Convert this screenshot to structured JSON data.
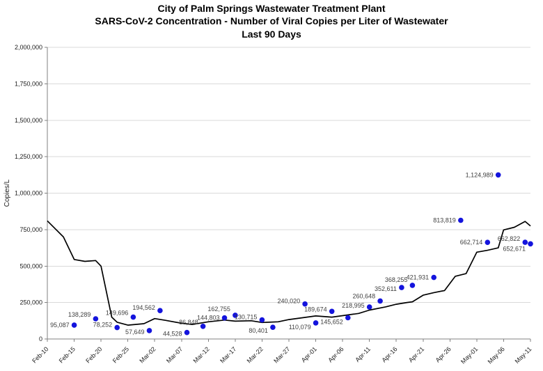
{
  "chart_data": {
    "type": "scatter",
    "title_lines": [
      "City of Palm Springs Wastewater Treatment Plant",
      "SARS-CoV-2 Concentration - Number of Viral Copies per Liter of Wastewater",
      "Last 90 Days"
    ],
    "ylabel": "Copies/L",
    "xlabel": "",
    "ylim": [
      0,
      2000000
    ],
    "x_range_days": [
      0,
      90
    ],
    "grid": "horizontal",
    "legend": "none",
    "colors": {
      "point": "#1414dd",
      "trend_line": "#000000",
      "gridline": "#d9d9d9",
      "axis": "#808080",
      "tick_label": "#1a1a1a",
      "data_label": "#404040",
      "title": "#000000",
      "background": "#ffffff"
    },
    "yticks": [
      {
        "value": 0,
        "label": "0"
      },
      {
        "value": 250000,
        "label": "250,000"
      },
      {
        "value": 500000,
        "label": "500,000"
      },
      {
        "value": 750000,
        "label": "750,000"
      },
      {
        "value": 1000000,
        "label": "1,000,000"
      },
      {
        "value": 1250000,
        "label": "1,250,000"
      },
      {
        "value": 1500000,
        "label": "1,500,000"
      },
      {
        "value": 1750000,
        "label": "1,750,000"
      },
      {
        "value": 2000000,
        "label": "2,000,000"
      }
    ],
    "xticks": [
      {
        "day": 0,
        "label": "Feb-10"
      },
      {
        "day": 5,
        "label": "Feb-15"
      },
      {
        "day": 10,
        "label": "Feb-20"
      },
      {
        "day": 15,
        "label": "Feb-25"
      },
      {
        "day": 20,
        "label": "Mar-02"
      },
      {
        "day": 25,
        "label": "Mar-07"
      },
      {
        "day": 30,
        "label": "Mar-12"
      },
      {
        "day": 35,
        "label": "Mar-17"
      },
      {
        "day": 40,
        "label": "Mar-22"
      },
      {
        "day": 45,
        "label": "Mar-27"
      },
      {
        "day": 50,
        "label": "Apr-01"
      },
      {
        "day": 55,
        "label": "Apr-06"
      },
      {
        "day": 60,
        "label": "Apr-11"
      },
      {
        "day": 65,
        "label": "Apr-16"
      },
      {
        "day": 70,
        "label": "Apr-21"
      },
      {
        "day": 75,
        "label": "Apr-26"
      },
      {
        "day": 80,
        "label": "May-01"
      },
      {
        "day": 85,
        "label": "May-06"
      },
      {
        "day": 90,
        "label": "May-11"
      }
    ],
    "points": [
      {
        "date": "Feb-15",
        "day": 5,
        "value": 95087,
        "label": "95,087",
        "label_dy": 0
      },
      {
        "date": "Feb-19",
        "day": 9,
        "value": 138289,
        "label": "138,289",
        "label_dy": -6
      },
      {
        "date": "Feb-23",
        "day": 13,
        "value": 78252,
        "label": "78,252",
        "label_dy": -4
      },
      {
        "date": "Feb-26",
        "day": 16,
        "value": 149696,
        "label": "149,696",
        "label_dy": -6
      },
      {
        "date": "Mar-01",
        "day": 19,
        "value": 57649,
        "label": "57,649",
        "label_dy": 2
      },
      {
        "date": "Mar-03",
        "day": 21,
        "value": 194562,
        "label": "194,562",
        "label_dy": -4
      },
      {
        "date": "Mar-08",
        "day": 26,
        "value": 44528,
        "label": "44,528",
        "label_dy": 2
      },
      {
        "date": "Mar-11",
        "day": 29,
        "value": 86848,
        "label": "86,848",
        "label_dy": -6
      },
      {
        "date": "Mar-15",
        "day": 33,
        "value": 144803,
        "label": "144,803",
        "label_dy": 0
      },
      {
        "date": "Mar-17",
        "day": 35,
        "value": 162755,
        "label": "162,755",
        "label_dy": -9
      },
      {
        "date": "Mar-22",
        "day": 40,
        "value": 130715,
        "label": "130,715",
        "label_dy": -4
      },
      {
        "date": "Mar-24",
        "day": 42,
        "value": 80401,
        "label": "80,401",
        "label_dy": 5
      },
      {
        "date": "Mar-30",
        "day": 48,
        "value": 240020,
        "label": "240,020",
        "label_dy": -4
      },
      {
        "date": "Apr-01",
        "day": 50,
        "value": 110079,
        "label": "110,079",
        "label_dy": 6
      },
      {
        "date": "Apr-04",
        "day": 53,
        "value": 189674,
        "label": "189,674",
        "label_dy": -3
      },
      {
        "date": "Apr-07",
        "day": 56,
        "value": 145652,
        "label": "145,652",
        "label_dy": 6
      },
      {
        "date": "Apr-11",
        "day": 60,
        "value": 218995,
        "label": "218,995",
        "label_dy": -2
      },
      {
        "date": "Apr-13",
        "day": 62,
        "value": 260648,
        "label": "260,648",
        "label_dy": -7
      },
      {
        "date": "Apr-17",
        "day": 66,
        "value": 352611,
        "label": "352,611",
        "label_dy": 2
      },
      {
        "date": "Apr-19",
        "day": 68,
        "value": 368255,
        "label": "368,255",
        "label_dy": -8
      },
      {
        "date": "Apr-23",
        "day": 72,
        "value": 421931,
        "label": "421,931",
        "label_dy": 0
      },
      {
        "date": "Apr-28",
        "day": 77,
        "value": 813819,
        "label": "813,819",
        "label_dy": 0
      },
      {
        "date": "May-03",
        "day": 82,
        "value": 662714,
        "label": "662,714",
        "label_dy": 0
      },
      {
        "date": "May-05",
        "day": 84,
        "value": 1124989,
        "label": "1,124,989",
        "label_dy": 0
      },
      {
        "date": "May-10",
        "day": 89,
        "value": 662822,
        "label": "662,822",
        "label_dy": -5
      },
      {
        "date": "May-11",
        "day": 90,
        "value": 652671,
        "label": "652,671",
        "label_dy": 7
      }
    ],
    "trend_line": [
      [
        0,
        810000
      ],
      [
        3,
        700000
      ],
      [
        5,
        545000
      ],
      [
        7,
        532000
      ],
      [
        9,
        538000
      ],
      [
        10,
        500000
      ],
      [
        12,
        150000
      ],
      [
        13,
        115000
      ],
      [
        15,
        95000
      ],
      [
        18,
        105000
      ],
      [
        20,
        140000
      ],
      [
        22,
        128000
      ],
      [
        25,
        108000
      ],
      [
        27,
        100000
      ],
      [
        30,
        118000
      ],
      [
        33,
        130000
      ],
      [
        35,
        122000
      ],
      [
        38,
        125000
      ],
      [
        40,
        113000
      ],
      [
        43,
        118000
      ],
      [
        45,
        133000
      ],
      [
        48,
        148000
      ],
      [
        50,
        158000
      ],
      [
        53,
        150000
      ],
      [
        55,
        160000
      ],
      [
        58,
        175000
      ],
      [
        60,
        198000
      ],
      [
        63,
        220000
      ],
      [
        65,
        238000
      ],
      [
        67,
        250000
      ],
      [
        68,
        255000
      ],
      [
        70,
        300000
      ],
      [
        72,
        318000
      ],
      [
        74,
        332000
      ],
      [
        76,
        430000
      ],
      [
        78,
        448000
      ],
      [
        80,
        595000
      ],
      [
        82,
        608000
      ],
      [
        84,
        625000
      ],
      [
        85,
        748000
      ],
      [
        87,
        766000
      ],
      [
        89,
        806000
      ],
      [
        90,
        775000
      ]
    ]
  }
}
